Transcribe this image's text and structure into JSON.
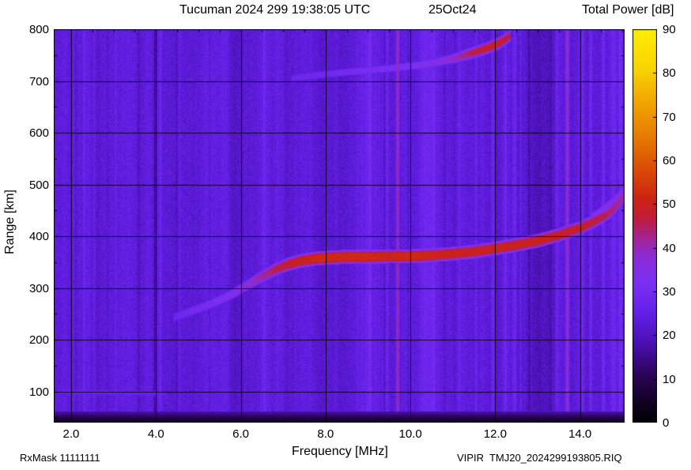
{
  "header": {
    "title": "Tucuman 2024 299 19:38:05 UTC",
    "date": "25Oct24",
    "colorbar_title": "Total Power [dB]"
  },
  "footer": {
    "rxmask": "RxMask 11111111",
    "file": "VIPIR  TMJ20_2024299193805.RIQ"
  },
  "chart_data": {
    "type": "heatmap",
    "title": "Tucuman 2024 299 19:38:05 UTC 25Oct24",
    "xlabel": "Frequency [MHz]",
    "ylabel": "Range [km]",
    "zlabel": "Total Power [dB]",
    "xlim": [
      1.59,
      15.05
    ],
    "ylim": [
      40,
      800
    ],
    "zlim": [
      0,
      90
    ],
    "x_ticks": [
      2,
      4,
      6,
      8,
      10,
      12,
      14
    ],
    "x_tick_labels": [
      "2.0",
      "4.0",
      "6.0",
      "8.0",
      "10.0",
      "12.0",
      "14.0"
    ],
    "x_minor_step": 0.5,
    "y_ticks": [
      100,
      200,
      300,
      400,
      500,
      600,
      700,
      800
    ],
    "y_minor_step": 50,
    "colorbar_ticks": [
      0,
      10,
      20,
      30,
      40,
      50,
      60,
      70,
      80,
      90
    ],
    "grid": true,
    "legend": "none",
    "background_db": 23.5,
    "noise_db": 3.2,
    "colormap": [
      {
        "pos": 0.0,
        "color": "#000000"
      },
      {
        "pos": 0.06,
        "color": "#140228"
      },
      {
        "pos": 0.13,
        "color": "#2e0660"
      },
      {
        "pos": 0.2,
        "color": "#4a10b0"
      },
      {
        "pos": 0.28,
        "color": "#6420e8"
      },
      {
        "pos": 0.36,
        "color": "#7c30f4"
      },
      {
        "pos": 0.42,
        "color": "#8c2cd8"
      },
      {
        "pos": 0.47,
        "color": "#a42494"
      },
      {
        "pos": 0.52,
        "color": "#c01c3c"
      },
      {
        "pos": 0.57,
        "color": "#cc2414"
      },
      {
        "pos": 0.65,
        "color": "#dc5004"
      },
      {
        "pos": 0.73,
        "color": "#e87c00"
      },
      {
        "pos": 0.82,
        "color": "#f2a800"
      },
      {
        "pos": 0.9,
        "color": "#fad400"
      },
      {
        "pos": 1.0,
        "color": "#ffee00"
      }
    ],
    "rfi_stripes": [
      {
        "f": 2.05,
        "w": 0.025,
        "db": 4
      },
      {
        "f": 2.3,
        "w": 0.02,
        "db": 3.5
      },
      {
        "f": 2.55,
        "w": 0.02,
        "db": 3.5
      },
      {
        "f": 2.8,
        "w": 0.02,
        "db": 2.5
      },
      {
        "f": 3.05,
        "w": 0.02,
        "db": 3
      },
      {
        "f": 3.6,
        "w": 0.025,
        "db": -3.5
      },
      {
        "f": 3.97,
        "w": 0.03,
        "db": -6
      },
      {
        "f": 4.1,
        "w": 0.04,
        "db": 5
      },
      {
        "f": 4.55,
        "w": 0.03,
        "db": 3
      },
      {
        "f": 6.55,
        "w": 0.03,
        "db": 3
      },
      {
        "f": 7.3,
        "w": 0.03,
        "db": 2.5
      },
      {
        "f": 8.95,
        "w": 0.28,
        "db": 3
      },
      {
        "f": 9.05,
        "w": 0.04,
        "db": 4
      },
      {
        "f": 9.45,
        "w": 0.03,
        "db": 3.5
      },
      {
        "f": 9.7,
        "w": 0.03,
        "db": 20
      },
      {
        "f": 9.95,
        "w": 0.025,
        "db": -4
      },
      {
        "f": 10.4,
        "w": 0.18,
        "db": 3.5
      },
      {
        "f": 10.55,
        "w": 0.03,
        "db": 4
      },
      {
        "f": 10.8,
        "w": 0.03,
        "db": -3.5
      },
      {
        "f": 11.15,
        "w": 0.03,
        "db": 4
      },
      {
        "f": 11.55,
        "w": 0.04,
        "db": 4.5
      },
      {
        "f": 11.95,
        "w": 0.05,
        "db": 5
      },
      {
        "f": 12.25,
        "w": 0.05,
        "db": 5.5
      },
      {
        "f": 12.45,
        "w": 0.05,
        "db": 5
      },
      {
        "f": 12.6,
        "w": 0.03,
        "db": 4
      },
      {
        "f": 12.8,
        "w": 0.03,
        "db": -5
      },
      {
        "f": 13.05,
        "w": 0.3,
        "db": -4
      },
      {
        "f": 13.3,
        "w": 0.03,
        "db": -4
      },
      {
        "f": 13.45,
        "w": 0.03,
        "db": 4
      },
      {
        "f": 13.7,
        "w": 0.035,
        "db": 18
      },
      {
        "f": 14.05,
        "w": 0.05,
        "db": 5.5
      },
      {
        "f": 14.25,
        "w": 0.04,
        "db": 5
      },
      {
        "f": 14.55,
        "w": 0.05,
        "db": 5.5
      },
      {
        "f": 14.8,
        "w": 0.06,
        "db": 5
      },
      {
        "f": 14.95,
        "w": 0.05,
        "db": 6
      }
    ],
    "traces": [
      {
        "name": "f-region-trace",
        "thickness_km": 12,
        "points": [
          [
            4.4,
            243,
            27
          ],
          [
            4.7,
            252,
            29
          ],
          [
            5.0,
            261,
            30
          ],
          [
            5.3,
            270,
            31
          ],
          [
            5.6,
            281,
            33
          ],
          [
            5.9,
            294,
            35
          ],
          [
            6.2,
            309,
            38
          ],
          [
            6.5,
            323,
            41
          ],
          [
            6.8,
            336,
            45
          ],
          [
            7.1,
            346,
            48
          ],
          [
            7.4,
            353,
            50
          ],
          [
            7.7,
            357,
            51
          ],
          [
            8.0,
            359,
            52
          ],
          [
            8.5,
            361,
            52
          ],
          [
            9.0,
            361,
            52
          ],
          [
            9.5,
            362,
            51
          ],
          [
            10.0,
            362,
            52
          ],
          [
            10.5,
            364,
            51
          ],
          [
            11.0,
            367,
            50
          ],
          [
            11.5,
            371,
            50
          ],
          [
            12.0,
            377,
            50
          ],
          [
            12.5,
            384,
            50
          ],
          [
            13.0,
            392,
            50
          ],
          [
            13.5,
            403,
            49
          ],
          [
            14.0,
            417,
            48
          ],
          [
            14.3,
            428,
            47
          ],
          [
            14.6,
            441,
            45
          ],
          [
            14.8,
            453,
            43
          ],
          [
            15.1,
            484,
            40
          ]
        ]
      },
      {
        "name": "second-hop-trace",
        "thickness_km": 9,
        "points": [
          [
            7.2,
            706,
            28
          ],
          [
            7.8,
            712,
            29
          ],
          [
            8.4,
            717,
            30
          ],
          [
            9.0,
            721,
            31
          ],
          [
            9.6,
            726,
            32
          ],
          [
            10.2,
            731,
            33
          ],
          [
            10.7,
            738,
            35
          ],
          [
            11.1,
            746,
            40
          ],
          [
            11.5,
            756,
            46
          ],
          [
            11.8,
            764,
            49
          ],
          [
            12.1,
            774,
            49
          ],
          [
            12.35,
            788,
            46
          ]
        ]
      },
      {
        "name": "e-region-line",
        "thickness_km": 5,
        "points": [
          [
            1.7,
            100,
            27
          ],
          [
            3.0,
            99,
            28
          ],
          [
            4.25,
            97,
            26
          ]
        ]
      },
      {
        "name": "spread-f-fringe",
        "thickness_km": 22,
        "points": [
          [
            14.25,
            430,
            33
          ],
          [
            14.6,
            450,
            35
          ],
          [
            14.9,
            470,
            36
          ],
          [
            15.1,
            492,
            36
          ]
        ]
      }
    ]
  }
}
